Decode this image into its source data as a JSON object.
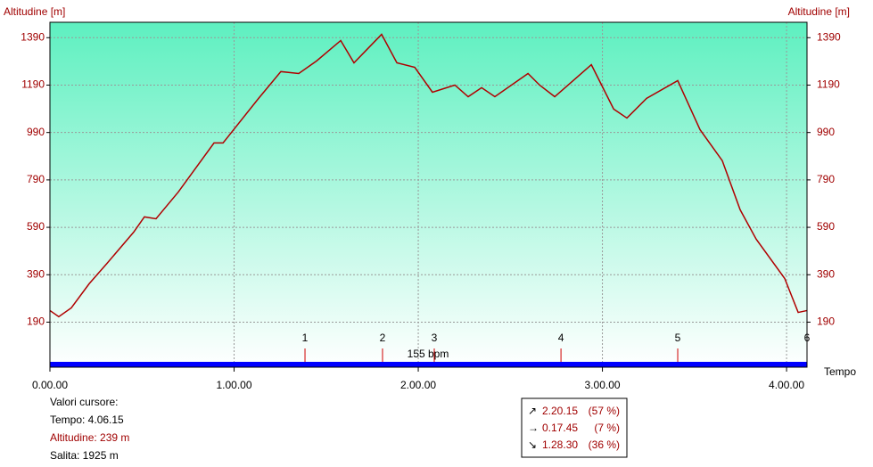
{
  "chart_data": {
    "type": "line",
    "y_label": "Altitudine [m]",
    "x_label": "Tempo",
    "x": [
      0,
      0.048,
      0.116,
      0.213,
      0.31,
      0.455,
      0.513,
      0.576,
      0.697,
      0.891,
      0.94,
      1.133,
      1.254,
      1.351,
      1.448,
      1.579,
      1.651,
      1.801,
      1.884,
      1.981,
      2.077,
      2.199,
      2.271,
      2.344,
      2.416,
      2.596,
      2.659,
      2.741,
      2.94,
      3.061,
      3.133,
      3.24,
      3.409,
      3.53,
      3.651,
      3.748,
      3.835,
      3.99,
      4.063,
      4.111
    ],
    "values": [
      239,
      213,
      250,
      352,
      438,
      570,
      634,
      626,
      739,
      946,
      946,
      1134,
      1247,
      1239,
      1292,
      1378,
      1284,
      1404,
      1284,
      1265,
      1160,
      1190,
      1141,
      1179,
      1141,
      1239,
      1190,
      1141,
      1276,
      1089,
      1051,
      1134,
      1209,
      1002,
      871,
      664,
      540,
      374,
      231,
      239
    ],
    "color": "#b00000",
    "xlim": [
      0,
      4.111
    ],
    "ylim": [
      0,
      1455
    ],
    "xticks": [
      {
        "value": 0,
        "label": "0.00.00"
      },
      {
        "value": 1,
        "label": "1.00.00"
      },
      {
        "value": 2,
        "label": "2.00.00"
      },
      {
        "value": 3,
        "label": "3.00.00"
      },
      {
        "value": 4,
        "label": "4.00.00"
      }
    ],
    "yticks": [
      190,
      390,
      590,
      790,
      990,
      1190,
      1390
    ],
    "grid": true,
    "laps": {
      "labels": [
        "1",
        "2",
        "3",
        "4",
        "5",
        "6"
      ],
      "x": [
        1.385,
        1.806,
        2.087,
        2.775,
        3.409,
        4.111
      ]
    },
    "hr_label": "155 bpm"
  },
  "cursor_panel": {
    "title": "Valori cursore:",
    "lines": [
      "Tempo: 4.06.15",
      "Altitudine: 239 m",
      "Salita: 1925 m"
    ]
  },
  "summary": [
    {
      "icon": "↗",
      "time": "2.20.15",
      "pct": "(57 %)"
    },
    {
      "icon": "→",
      "time": "0.17.45",
      "pct": "(7 %)"
    },
    {
      "icon": "↘",
      "time": "1.28.30",
      "pct": "(36 %)"
    }
  ]
}
